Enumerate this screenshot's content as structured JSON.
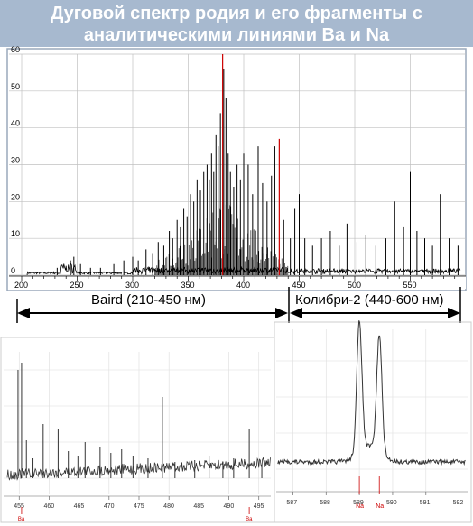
{
  "title": {
    "line1": "Дуговой спектр родия и его фрагменты с",
    "line2": "аналитическими линиями Ba и Na"
  },
  "colors": {
    "title_bg": "#a7b9cf",
    "title_text": "#ffffff",
    "spectrum": "#000000",
    "analytical_line": "#cc0000",
    "grid": "#c0c0c0"
  },
  "ranges": {
    "baird": "Baird (210-450 нм)",
    "kolibri": "Колибри-2 (440-600 нм)"
  },
  "chart_data": [
    {
      "name": "main-spectrum",
      "type": "line",
      "x_ticks": [
        200,
        250,
        300,
        350,
        400,
        450,
        500,
        550
      ],
      "y_ticks": [
        0,
        10,
        20,
        30,
        40,
        50,
        60
      ],
      "xlim": [
        200,
        600
      ],
      "ylim": [
        0,
        60
      ],
      "grid": true,
      "highlight_lines": [
        {
          "x": 381,
          "y": 60
        },
        {
          "x": 432,
          "y": 37
        }
      ],
      "peaks": [
        [
          232,
          2
        ],
        [
          244,
          4
        ],
        [
          247,
          5
        ],
        [
          253,
          3
        ],
        [
          262,
          2
        ],
        [
          271,
          2
        ],
        [
          283,
          3
        ],
        [
          292,
          4
        ],
        [
          300,
          5
        ],
        [
          305,
          4
        ],
        [
          312,
          7
        ],
        [
          318,
          6
        ],
        [
          323,
          9
        ],
        [
          328,
          8
        ],
        [
          333,
          12
        ],
        [
          336,
          10
        ],
        [
          340,
          15
        ],
        [
          343,
          13
        ],
        [
          346,
          18
        ],
        [
          349,
          16
        ],
        [
          352,
          22
        ],
        [
          355,
          20
        ],
        [
          358,
          26
        ],
        [
          361,
          23
        ],
        [
          364,
          28
        ],
        [
          367,
          30
        ],
        [
          369,
          26
        ],
        [
          371,
          33
        ],
        [
          373,
          28
        ],
        [
          375,
          38
        ],
        [
          377,
          35
        ],
        [
          379,
          44
        ],
        [
          382,
          56
        ],
        [
          384,
          48
        ],
        [
          386,
          33
        ],
        [
          388,
          28
        ],
        [
          391,
          24
        ],
        [
          394,
          30
        ],
        [
          397,
          26
        ],
        [
          400,
          33
        ],
        [
          404,
          30
        ],
        [
          408,
          22
        ],
        [
          413,
          35
        ],
        [
          417,
          25
        ],
        [
          421,
          20
        ],
        [
          425,
          27
        ],
        [
          428,
          35
        ],
        [
          436,
          15
        ],
        [
          442,
          10
        ],
        [
          446,
          18
        ],
        [
          450,
          22
        ],
        [
          455,
          10
        ],
        [
          462,
          8
        ],
        [
          470,
          10
        ],
        [
          478,
          12
        ],
        [
          486,
          8
        ],
        [
          493,
          14
        ],
        [
          502,
          9
        ],
        [
          510,
          11
        ],
        [
          519,
          8
        ],
        [
          528,
          10
        ],
        [
          536,
          20
        ],
        [
          544,
          13
        ],
        [
          550,
          28
        ],
        [
          556,
          12
        ],
        [
          563,
          10
        ],
        [
          570,
          8
        ],
        [
          577,
          22
        ],
        [
          585,
          10
        ],
        [
          593,
          8
        ]
      ]
    },
    {
      "name": "ba-fragment",
      "type": "line",
      "x_ticks": [
        455,
        460,
        465,
        470,
        475,
        480,
        485,
        490,
        495
      ],
      "xlim": [
        453,
        497
      ],
      "grid": true,
      "highlight_labels": [
        {
          "x": 455.4,
          "label": "Ba"
        },
        {
          "x": 493.4,
          "label": "Ba"
        }
      ],
      "peaks": [
        [
          454.8,
          120
        ],
        [
          455.4,
          128
        ],
        [
          456.2,
          42
        ],
        [
          457.3,
          22
        ],
        [
          459.0,
          60
        ],
        [
          461.5,
          55
        ],
        [
          463.2,
          30
        ],
        [
          464.8,
          25
        ],
        [
          466.0,
          40
        ],
        [
          468.5,
          35
        ],
        [
          470.3,
          28
        ],
        [
          472.1,
          32
        ],
        [
          474.0,
          25
        ],
        [
          476.5,
          22
        ],
        [
          478.9,
          90
        ],
        [
          481.0,
          18
        ],
        [
          484.3,
          20
        ],
        [
          486.7,
          25
        ],
        [
          489.0,
          18
        ],
        [
          490.8,
          22
        ],
        [
          493.4,
          55
        ],
        [
          495.5,
          15
        ]
      ]
    },
    {
      "name": "na-fragment",
      "type": "line",
      "x_ticks": [
        587,
        588,
        589,
        590,
        591,
        592
      ],
      "xlim": [
        586.5,
        592.2
      ],
      "grid": true,
      "highlight_labels": [
        {
          "x": 589.0,
          "label": "Na"
        },
        {
          "x": 589.6,
          "label": "Na"
        }
      ],
      "peaks": [
        [
          589.0,
          100
        ],
        [
          589.6,
          90
        ]
      ]
    }
  ]
}
